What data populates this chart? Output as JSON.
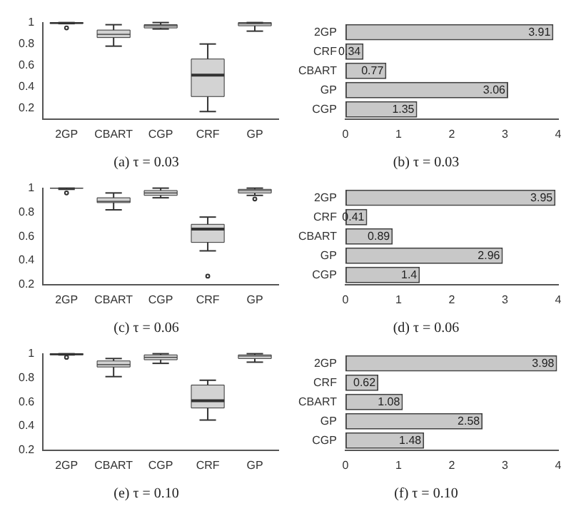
{
  "chart_data": [
    {
      "type": "box",
      "title": "(a) τ = 0.03",
      "categories": [
        "2GP",
        "CBART",
        "CGP",
        "CRF",
        "GP"
      ],
      "colors": [
        "#333333",
        "#d3d3d3",
        "#d3d3d3",
        "#d3d3d3",
        "#d3d3d3"
      ],
      "ylim": [
        0.1,
        1.0
      ],
      "yticks": [
        0.2,
        0.4,
        0.6,
        0.8,
        1.0
      ],
      "boxes": [
        {
          "low": 0.99,
          "q1": 0.99,
          "median": 1.0,
          "q3": 1.0,
          "high": 1.0,
          "outliers": [
            0.95
          ]
        },
        {
          "low": 0.78,
          "q1": 0.86,
          "median": 0.89,
          "q3": 0.93,
          "high": 0.98
        },
        {
          "low": 0.94,
          "q1": 0.95,
          "median": 0.97,
          "q3": 0.98,
          "high": 1.0
        },
        {
          "low": 0.17,
          "q1": 0.31,
          "median": 0.51,
          "q3": 0.66,
          "high": 0.8
        },
        {
          "low": 0.92,
          "q1": 0.97,
          "median": 0.99,
          "q3": 1.0,
          "high": 1.0
        }
      ]
    },
    {
      "type": "bar",
      "orientation": "horizontal",
      "title": "(b) τ = 0.03",
      "categories": [
        "2GP",
        "CRF",
        "CBART",
        "GP",
        "CGP"
      ],
      "values": [
        3.91,
        0.34,
        0.77,
        3.06,
        1.35
      ],
      "color": "#c8c8c8",
      "xlim": [
        0,
        4
      ],
      "xticks": [
        0,
        1,
        2,
        3,
        4
      ],
      "data_labels": true
    },
    {
      "type": "box",
      "title": "(c) τ = 0.06",
      "categories": [
        "2GP",
        "CBART",
        "CGP",
        "CRF",
        "GP"
      ],
      "colors": [
        "#333333",
        "#d3d3d3",
        "#d3d3d3",
        "#d3d3d3",
        "#d3d3d3"
      ],
      "ylim": [
        0.2,
        1.0
      ],
      "yticks": [
        0.2,
        0.4,
        0.6,
        0.8,
        1.0
      ],
      "boxes": [
        {
          "low": 0.99,
          "q1": 1.0,
          "median": 1.0,
          "q3": 1.0,
          "high": 1.0,
          "outliers": [
            0.96
          ]
        },
        {
          "low": 0.82,
          "q1": 0.88,
          "median": 0.89,
          "q3": 0.92,
          "high": 0.96
        },
        {
          "low": 0.92,
          "q1": 0.94,
          "median": 0.96,
          "q3": 0.98,
          "high": 1.0
        },
        {
          "low": 0.48,
          "q1": 0.55,
          "median": 0.66,
          "q3": 0.7,
          "high": 0.76,
          "outliers": [
            0.27
          ]
        },
        {
          "low": 0.94,
          "q1": 0.96,
          "median": 0.98,
          "q3": 0.99,
          "high": 1.0,
          "outliers": [
            0.91
          ]
        }
      ]
    },
    {
      "type": "bar",
      "orientation": "horizontal",
      "title": "(d) τ = 0.06",
      "categories": [
        "2GP",
        "CRF",
        "CBART",
        "GP",
        "CGP"
      ],
      "values": [
        3.95,
        0.41,
        0.89,
        2.96,
        1.4
      ],
      "color": "#c8c8c8",
      "xlim": [
        0,
        4
      ],
      "xticks": [
        0,
        1,
        2,
        3,
        4
      ],
      "data_labels": true
    },
    {
      "type": "box",
      "title": "(e) τ = 0.10",
      "categories": [
        "2GP",
        "CBART",
        "CGP",
        "CRF",
        "GP"
      ],
      "colors": [
        "#333333",
        "#d3d3d3",
        "#d3d3d3",
        "#d3d3d3",
        "#d3d3d3"
      ],
      "ylim": [
        0.2,
        1.0
      ],
      "yticks": [
        0.2,
        0.4,
        0.6,
        0.8,
        1.0
      ],
      "boxes": [
        {
          "low": 0.99,
          "q1": 0.99,
          "median": 1.0,
          "q3": 1.0,
          "high": 1.0,
          "outliers": [
            0.97
          ]
        },
        {
          "low": 0.81,
          "q1": 0.89,
          "median": 0.91,
          "q3": 0.94,
          "high": 0.96
        },
        {
          "low": 0.92,
          "q1": 0.95,
          "median": 0.97,
          "q3": 0.99,
          "high": 1.0
        },
        {
          "low": 0.45,
          "q1": 0.55,
          "median": 0.61,
          "q3": 0.74,
          "high": 0.78
        },
        {
          "low": 0.93,
          "q1": 0.96,
          "median": 0.98,
          "q3": 0.99,
          "high": 1.0
        }
      ]
    },
    {
      "type": "bar",
      "orientation": "horizontal",
      "title": "(f) τ = 0.10",
      "categories": [
        "2GP",
        "CRF",
        "CBART",
        "GP",
        "CGP"
      ],
      "values": [
        3.98,
        0.62,
        1.08,
        2.58,
        1.48
      ],
      "color": "#c8c8c8",
      "xlim": [
        0,
        4
      ],
      "xticks": [
        0,
        1,
        2,
        3,
        4
      ],
      "data_labels": true
    }
  ]
}
